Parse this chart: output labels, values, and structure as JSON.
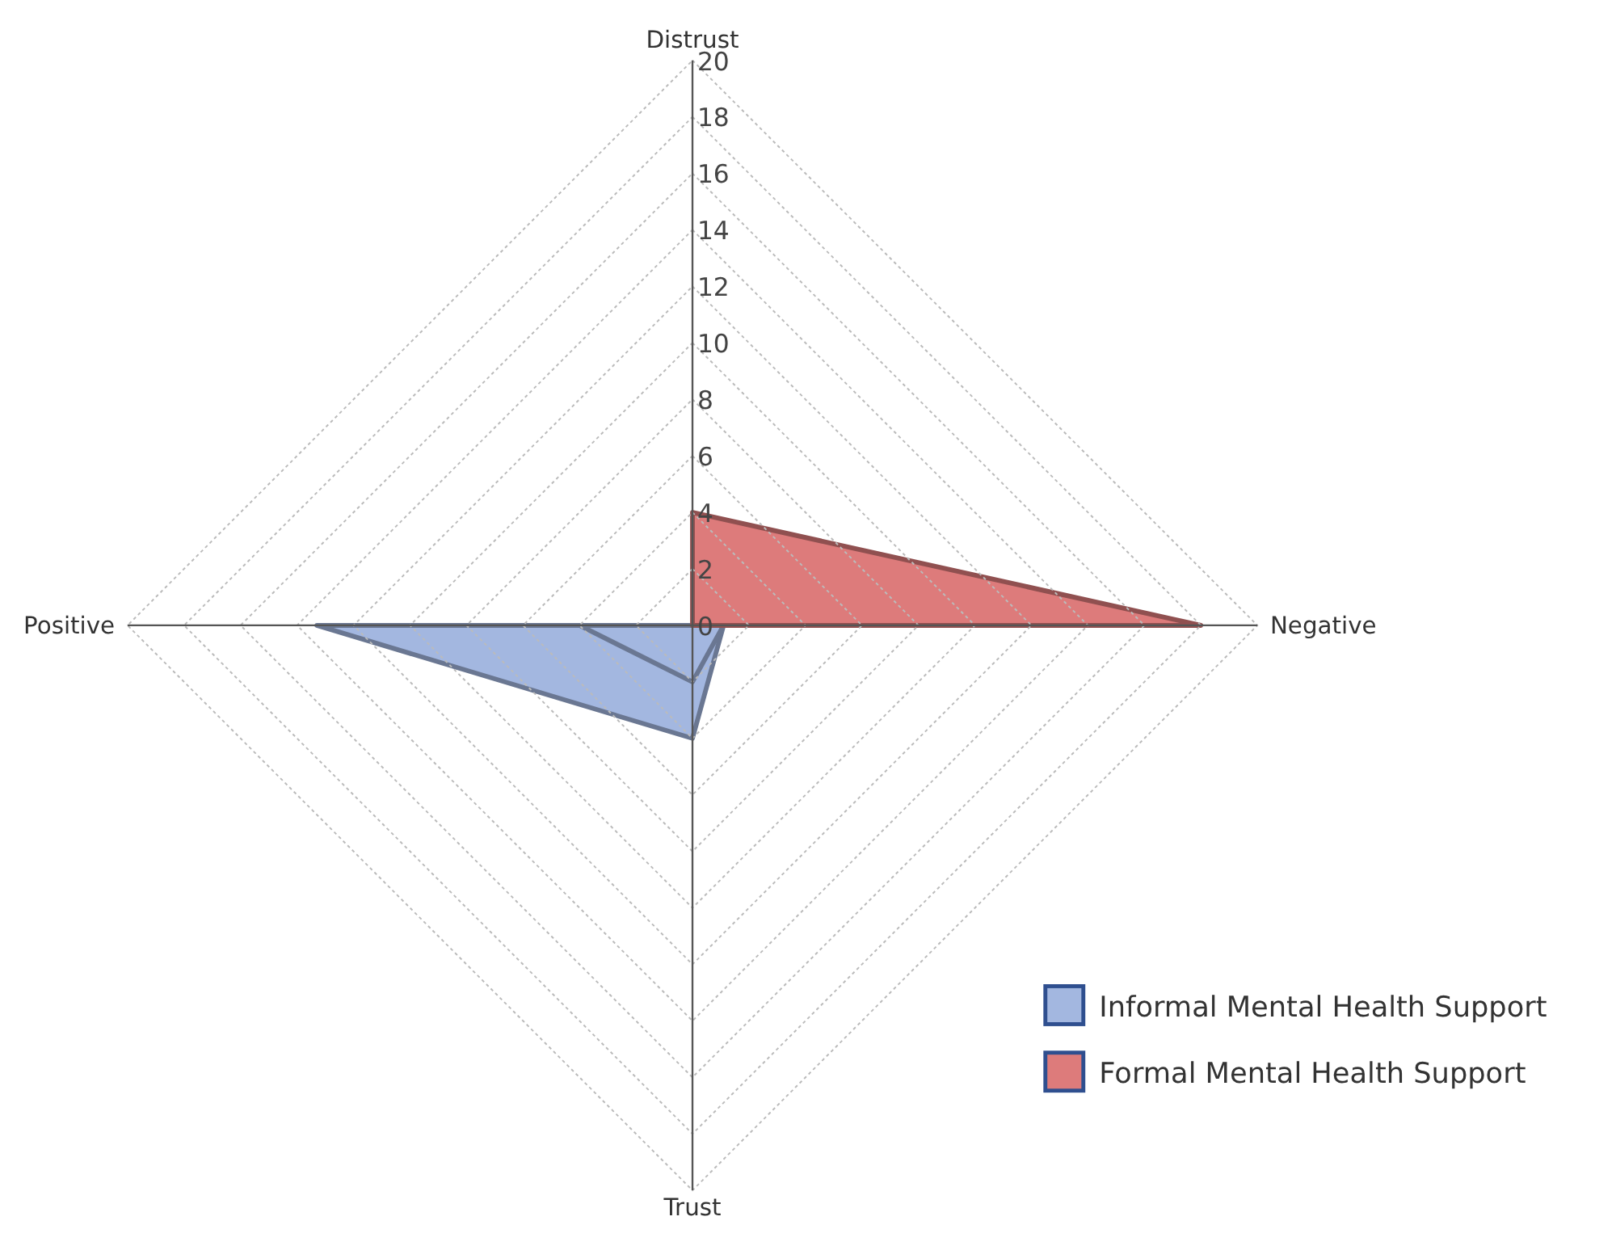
{
  "chart_data": {
    "type": "radar",
    "categories": [
      "Distrust",
      "Negative",
      "Trust",
      "Positive"
    ],
    "ylim": [
      0,
      20
    ],
    "yticks": [
      0,
      2,
      4,
      6,
      8,
      10,
      12,
      14,
      16,
      18,
      20
    ],
    "grid": true,
    "legend": "bottom right",
    "series": [
      {
        "name": "Informal Mental Health Support",
        "color": "#a3b7e0",
        "values": [
          0,
          1.1,
          4,
          13.3
        ]
      },
      {
        "color": "#a3b7e0",
        "values": [
          0,
          1.1,
          2,
          4
        ]
      },
      {
        "name": "Formal Mental Health Support",
        "color": "#dd7b7b",
        "values": [
          4,
          18,
          0,
          0
        ]
      }
    ]
  }
}
